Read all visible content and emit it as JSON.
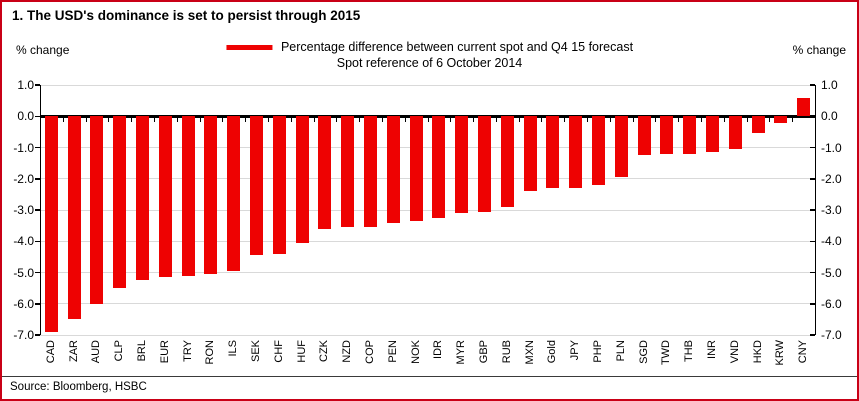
{
  "figure": {
    "title": "1. The USD's dominance is set to persist through 2015",
    "left_axis_unit": "% change",
    "right_axis_unit": "% change",
    "source": "Source: Bloomberg, HSBC"
  },
  "legend": {
    "line1": "Percentage difference between current spot and Q4 15 forecast",
    "line2": "Spot reference of 6 October 2014"
  },
  "colors": {
    "bar": "#EE0202",
    "legend_marker": "#EE0202",
    "figure_border": "#C90016",
    "gridline": "#D9D9D9",
    "axis": "#000000"
  },
  "chart_data": {
    "type": "bar",
    "title": "1. The USD's dominance is set to persist through 2015",
    "legend": [
      "Percentage difference between current spot and Q4 15 forecast"
    ],
    "legend_position": "top-center",
    "xlabel": "",
    "ylabel": "% change",
    "ylim": [
      -7.0,
      1.0
    ],
    "ytick_step": 1.0,
    "ytick_labels": [
      "1.0",
      "0.0",
      "-1.0",
      "-2.0",
      "-3.0",
      "-4.0",
      "-5.0",
      "-6.0",
      "-7.0"
    ],
    "grid": true,
    "categories": [
      "CAD",
      "ZAR",
      "AUD",
      "CLP",
      "BRL",
      "EUR",
      "TRY",
      "RON",
      "ILS",
      "SEK",
      "CHF",
      "HUF",
      "CZK",
      "NZD",
      "COP",
      "PEN",
      "NOK",
      "IDR",
      "MYR",
      "GBP",
      "RUB",
      "MXN",
      "Gold",
      "JPY",
      "PHP",
      "PLN",
      "SGD",
      "TWD",
      "THB",
      "INR",
      "VND",
      "HKD",
      "KRW",
      "CNY"
    ],
    "values": [
      -6.9,
      -6.5,
      -6.0,
      -5.5,
      -5.25,
      -5.15,
      -5.1,
      -5.05,
      -4.95,
      -4.45,
      -4.4,
      -4.05,
      -3.6,
      -3.55,
      -3.55,
      -3.4,
      -3.35,
      -3.25,
      -3.1,
      -3.05,
      -2.9,
      -2.4,
      -2.3,
      -2.3,
      -2.2,
      -1.95,
      -1.25,
      -1.2,
      -1.2,
      -1.15,
      -1.05,
      -0.55,
      -0.2,
      0.6
    ]
  }
}
